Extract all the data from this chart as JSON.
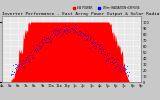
{
  "title": "Solar PV / Inverter Performance - East Array Power Output & Solar Radiation",
  "legend_label1": "kW POWER",
  "legend_label2": "W/m² RADIATION+DIFFUSE",
  "legend_color1": "#ff0000",
  "legend_color2": "#0000ff",
  "bg_color": "#c8c8c8",
  "plot_bg": "#e8e8e8",
  "grid_color": "#ffffff",
  "bar_color": "#ff0000",
  "dot_color": "#0000ff",
  "ylim": [
    0,
    110
  ],
  "xlim": [
    0,
    300
  ],
  "n_points": 300,
  "title_fontsize": 3.2,
  "tick_fontsize": 2.5
}
